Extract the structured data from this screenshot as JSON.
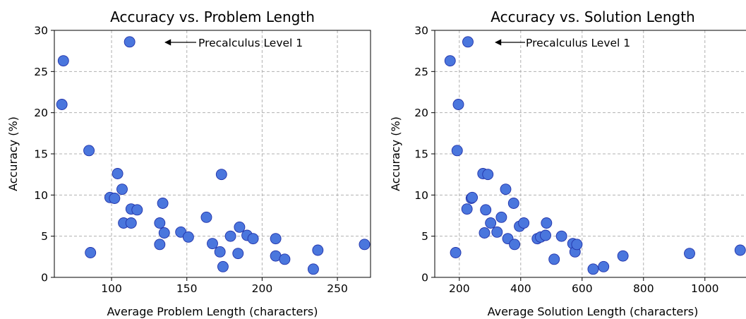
{
  "colors": {
    "marker_fill": "#4a76dd",
    "marker_edge": "#2233aa",
    "grid": "#b0b0b0"
  },
  "chart_data": [
    {
      "type": "scatter",
      "title": "Accuracy vs. Problem Length",
      "xlabel": "Average Problem Length (characters)",
      "ylabel": "Accuracy (%)",
      "xlim": [
        62,
        272
      ],
      "ylim": [
        0,
        30
      ],
      "xticks": [
        100,
        150,
        200,
        250
      ],
      "yticks": [
        0,
        5,
        10,
        15,
        20,
        25,
        30
      ],
      "grid": true,
      "annotation": {
        "text": "Precalculus Level 1",
        "point": [
          112,
          28.6
        ],
        "arrow_from": [
          134,
          28.6
        ],
        "arrow_to": [
          117,
          28.6
        ]
      },
      "points": [
        [
          68,
          26.3
        ],
        [
          67,
          21.0
        ],
        [
          85,
          15.4
        ],
        [
          86,
          3.0
        ],
        [
          99,
          9.7
        ],
        [
          102,
          9.6
        ],
        [
          104,
          12.6
        ],
        [
          107,
          10.7
        ],
        [
          108,
          6.6
        ],
        [
          112,
          28.6
        ],
        [
          113,
          8.3
        ],
        [
          113,
          6.6
        ],
        [
          117,
          8.2
        ],
        [
          132,
          6.6
        ],
        [
          132,
          4.0
        ],
        [
          134,
          9.0
        ],
        [
          135,
          5.4
        ],
        [
          146,
          5.5
        ],
        [
          151,
          4.9
        ],
        [
          163,
          7.3
        ],
        [
          167,
          4.1
        ],
        [
          172,
          3.1
        ],
        [
          173,
          12.5
        ],
        [
          174,
          1.3
        ],
        [
          179,
          5.0
        ],
        [
          184,
          2.9
        ],
        [
          185,
          6.1
        ],
        [
          190,
          5.1
        ],
        [
          194,
          4.7
        ],
        [
          209,
          4.7
        ],
        [
          209,
          2.6
        ],
        [
          215,
          2.2
        ],
        [
          234,
          1.0
        ],
        [
          237,
          3.3
        ],
        [
          268,
          4.0
        ]
      ]
    },
    {
      "type": "scatter",
      "title": "Accuracy vs. Solution Length",
      "xlabel": "Average Solution Length (characters)",
      "ylabel": "Accuracy (%)",
      "xlim": [
        120,
        1150
      ],
      "ylim": [
        0,
        30
      ],
      "xticks": [
        200,
        400,
        600,
        800,
        1000
      ],
      "yticks": [
        0,
        5,
        10,
        15,
        20,
        25,
        30
      ],
      "grid": true,
      "annotation": {
        "text": "Precalculus Level 1",
        "point": [
          228,
          28.6
        ],
        "arrow_from": [
          320,
          28.6
        ],
        "arrow_to": [
          243,
          28.6
        ]
      },
      "points": [
        [
          170,
          26.3
        ],
        [
          188,
          3.0
        ],
        [
          193,
          15.4
        ],
        [
          197,
          21.0
        ],
        [
          225,
          8.3
        ],
        [
          228,
          28.6
        ],
        [
          239,
          9.6
        ],
        [
          242,
          9.7
        ],
        [
          277,
          12.6
        ],
        [
          282,
          5.4
        ],
        [
          286,
          8.2
        ],
        [
          293,
          12.5
        ],
        [
          302,
          6.6
        ],
        [
          323,
          5.5
        ],
        [
          337,
          7.3
        ],
        [
          351,
          10.7
        ],
        [
          358,
          4.7
        ],
        [
          377,
          9.0
        ],
        [
          380,
          4.0
        ],
        [
          396,
          6.2
        ],
        [
          410,
          6.6
        ],
        [
          454,
          4.7
        ],
        [
          465,
          4.9
        ],
        [
          481,
          5.1
        ],
        [
          484,
          6.6
        ],
        [
          509,
          2.2
        ],
        [
          533,
          5.0
        ],
        [
          570,
          4.1
        ],
        [
          577,
          3.1
        ],
        [
          583,
          4.0
        ],
        [
          636,
          1.0
        ],
        [
          670,
          1.3
        ],
        [
          733,
          2.6
        ],
        [
          950,
          2.9
        ],
        [
          1115,
          3.3
        ]
      ]
    }
  ]
}
